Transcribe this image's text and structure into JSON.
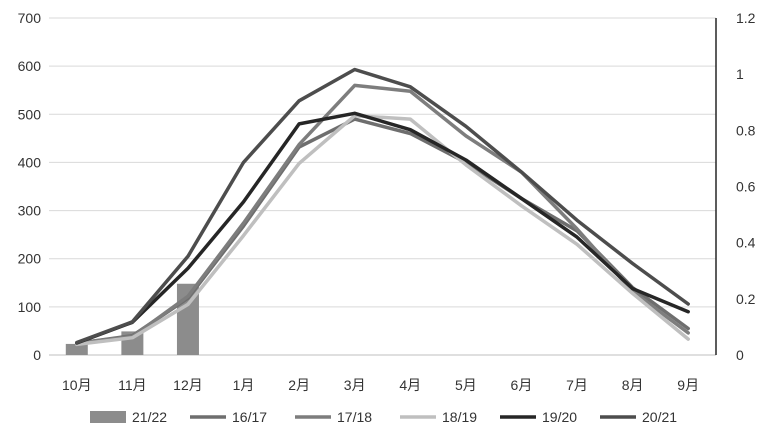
{
  "chart_data": {
    "type": "bar+line",
    "categories": [
      "10月",
      "11月",
      "12月",
      "1月",
      "2月",
      "3月",
      "4月",
      "5月",
      "6月",
      "7月",
      "8月",
      "9月"
    ],
    "y_left": {
      "min": 0,
      "max": 700,
      "ticks": [
        "0",
        "100",
        "200",
        "300",
        "400",
        "500",
        "600",
        "700"
      ]
    },
    "y_right": {
      "min": 0,
      "max": 1.2,
      "ticks": [
        "0",
        "0.2",
        "0.4",
        "0.6",
        "0.8",
        "1",
        "1.2"
      ]
    },
    "grid": true,
    "legend_position": "bottom",
    "bars": {
      "name": "21/22",
      "axis": "left",
      "color": "#8c8c8c",
      "values": [
        23,
        49,
        148,
        null,
        null,
        null,
        null,
        null,
        null,
        null,
        null,
        null
      ]
    },
    "series": [
      {
        "name": "16/17",
        "axis": "left",
        "color": "#6e6e6e",
        "values": [
          24,
          40,
          118,
          268,
          432,
          490,
          460,
          400,
          325,
          258,
          140,
          55
        ]
      },
      {
        "name": "17/18",
        "axis": "left",
        "color": "#7d7d7d",
        "values": [
          25,
          38,
          122,
          274,
          437,
          560,
          548,
          455,
          380,
          262,
          132,
          46
        ]
      },
      {
        "name": "18/19",
        "axis": "left",
        "color": "#bfbfbf",
        "values": [
          22,
          36,
          105,
          248,
          398,
          497,
          490,
          395,
          310,
          230,
          128,
          33
        ]
      },
      {
        "name": "19/20",
        "axis": "left",
        "color": "#262626",
        "values": [
          25,
          68,
          180,
          318,
          480,
          502,
          468,
          405,
          325,
          245,
          138,
          90
        ]
      },
      {
        "name": "20/21",
        "axis": "left",
        "color": "#4d4d4d",
        "values": [
          26,
          69,
          205,
          400,
          528,
          593,
          557,
          475,
          380,
          280,
          190,
          106
        ]
      }
    ]
  }
}
